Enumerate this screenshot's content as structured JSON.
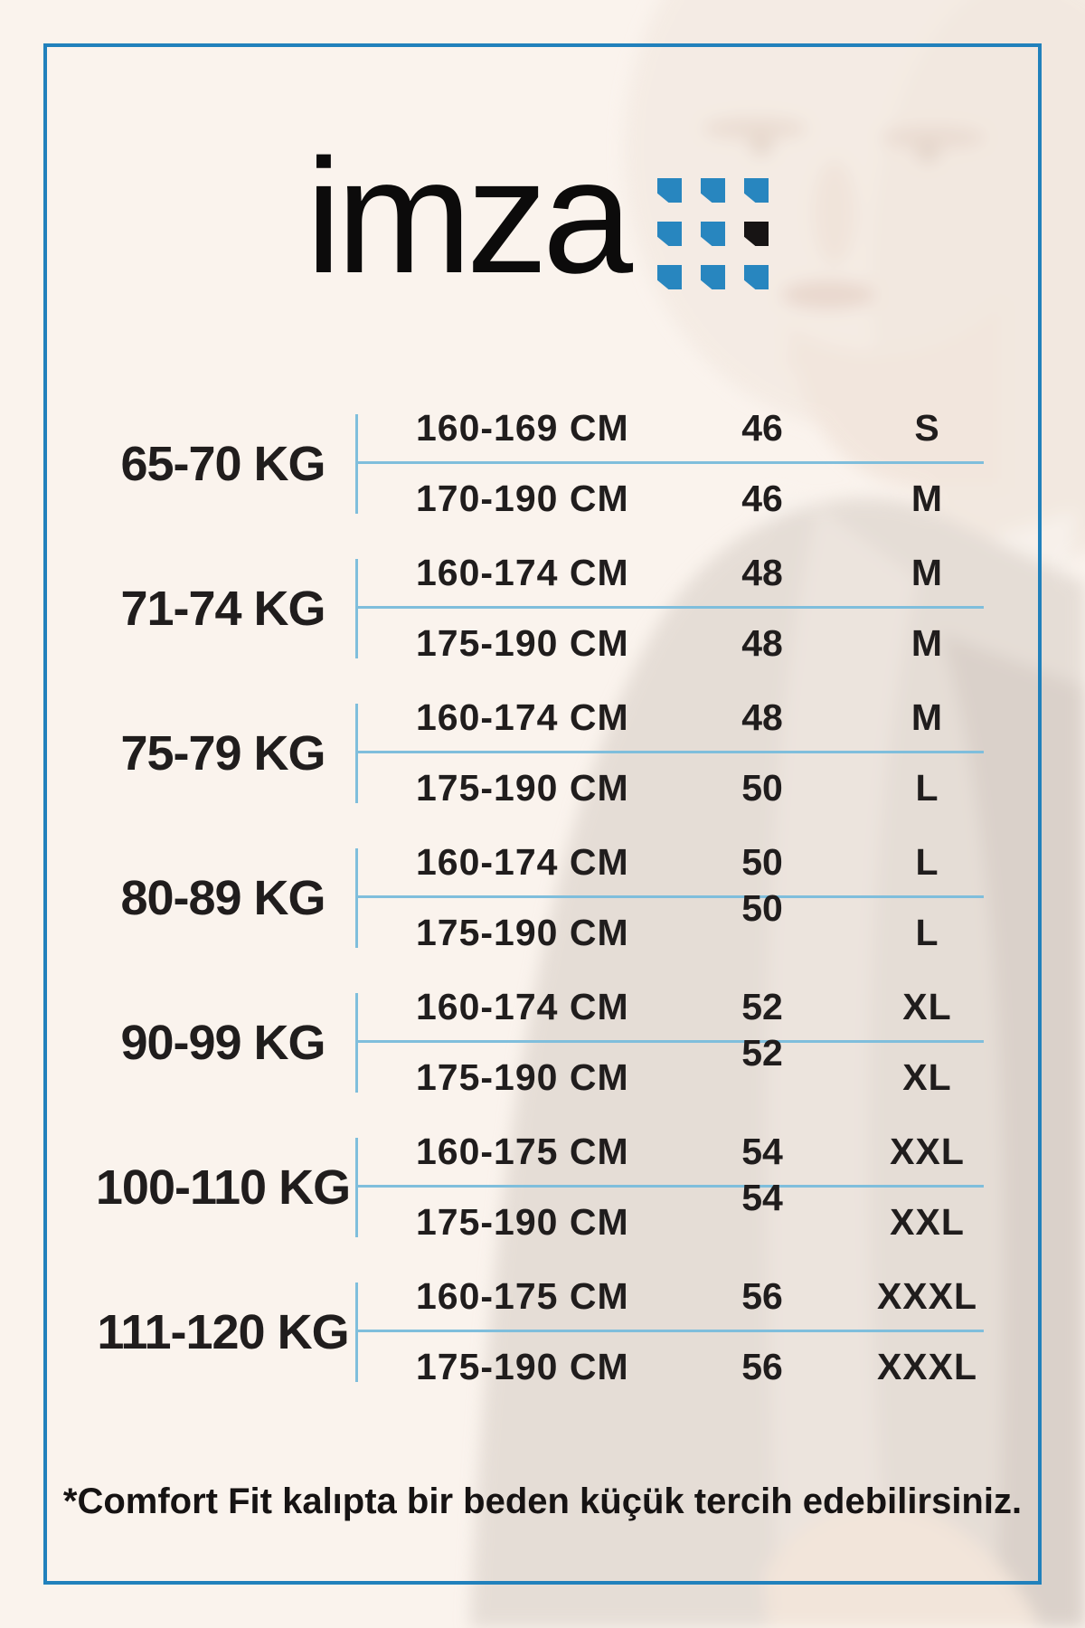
{
  "logo": {
    "text": "imza",
    "squares": {
      "grid": "3x3",
      "cells": [
        "blue",
        "blue",
        "blue",
        "blue",
        "blue",
        "black",
        "blue",
        "blue",
        "blue"
      ],
      "blue": "#2886BF",
      "black": "#171414"
    }
  },
  "colors": {
    "background": "#FAF3ED",
    "frame_border": "#2181BC",
    "table_rules": "#7FBEDC",
    "text": "#201D1D"
  },
  "table": {
    "rows": [
      {
        "weight": "65-70 KG",
        "entries": [
          {
            "height": "160-169 CM",
            "size": "46",
            "letter": "S",
            "raised": false
          },
          {
            "height": "170-190 CM",
            "size": "46",
            "letter": "M",
            "raised": false
          }
        ]
      },
      {
        "weight": "71-74 KG",
        "entries": [
          {
            "height": "160-174 CM",
            "size": "48",
            "letter": "M",
            "raised": false
          },
          {
            "height": "175-190 CM",
            "size": "48",
            "letter": "M",
            "raised": false
          }
        ]
      },
      {
        "weight": "75-79 KG",
        "entries": [
          {
            "height": "160-174 CM",
            "size": "48",
            "letter": "M",
            "raised": false
          },
          {
            "height": "175-190 CM",
            "size": "50",
            "letter": "L",
            "raised": false
          }
        ]
      },
      {
        "weight": "80-89 KG",
        "entries": [
          {
            "height": "160-174 CM",
            "size": "50",
            "letter": "L",
            "raised": false
          },
          {
            "height": "175-190 CM",
            "size": "50",
            "letter": "L",
            "raised": true
          }
        ]
      },
      {
        "weight": "90-99 KG",
        "entries": [
          {
            "height": "160-174 CM",
            "size": "52",
            "letter": "XL",
            "raised": false
          },
          {
            "height": "175-190 CM",
            "size": "52",
            "letter": "XL",
            "raised": true
          }
        ]
      },
      {
        "weight": "100-110 KG",
        "entries": [
          {
            "height": "160-175 CM",
            "size": "54",
            "letter": "XXL",
            "raised": false
          },
          {
            "height": "175-190 CM",
            "size": "54",
            "letter": "XXL",
            "raised": true
          }
        ]
      },
      {
        "weight": "111-120 KG",
        "entries": [
          {
            "height": "160-175 CM",
            "size": "56",
            "letter": "XXXL",
            "raised": false
          },
          {
            "height": "175-190 CM",
            "size": "56",
            "letter": "XXXL",
            "raised": false
          }
        ]
      }
    ]
  },
  "footer": {
    "note": "*Comfort Fit kalıpta bir beden küçük tercih edebilirsiniz."
  }
}
